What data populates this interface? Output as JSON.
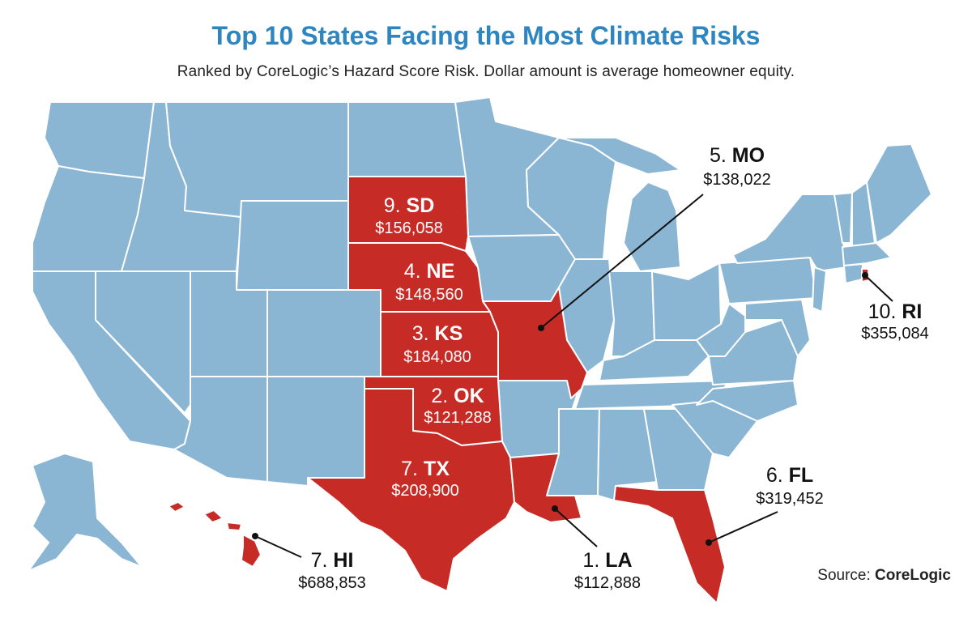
{
  "title": "Top 10 States Facing the Most Climate Risks",
  "subtitle": "Ranked by CoreLogic’s Hazard Score Risk. Dollar amount is average homeowner equity.",
  "source_prefix": "Source:",
  "source_name": "CoreLogic",
  "colors": {
    "highlight": "#c62b26",
    "base": "#8ab5d3",
    "title": "#2e86c1"
  },
  "states": [
    {
      "id": "sd",
      "rank": "9.",
      "abbr": "SD",
      "value": "$156,058"
    },
    {
      "id": "ne",
      "rank": "4.",
      "abbr": "NE",
      "value": "$148,560"
    },
    {
      "id": "ks",
      "rank": "3.",
      "abbr": "KS",
      "value": "$184,080"
    },
    {
      "id": "ok",
      "rank": "2.",
      "abbr": "OK",
      "value": "$121,288"
    },
    {
      "id": "tx",
      "rank": "7.",
      "abbr": "TX",
      "value": "$208,900"
    },
    {
      "id": "mo",
      "rank": "5.",
      "abbr": "MO",
      "value": "$138,022"
    },
    {
      "id": "ri",
      "rank": "10.",
      "abbr": "RI",
      "value": "$355,084"
    },
    {
      "id": "fl",
      "rank": "6.",
      "abbr": "FL",
      "value": "$319,452"
    },
    {
      "id": "la",
      "rank": "1.",
      "abbr": "LA",
      "value": "$112,888"
    },
    {
      "id": "hi",
      "rank": "7.",
      "abbr": "HI",
      "value": "$688,853"
    }
  ]
}
